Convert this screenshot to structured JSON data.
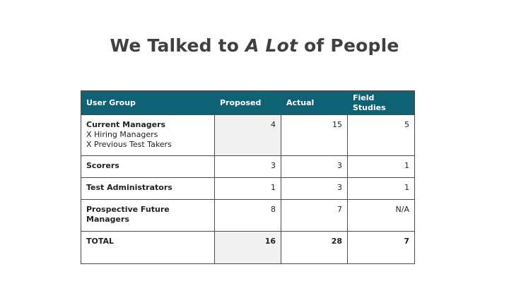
{
  "slide": {
    "title_part1": "We Talked to ",
    "title_emphasis": "A Lot",
    "title_part2": " of People"
  },
  "table": {
    "headers": [
      "User Group",
      "Proposed",
      "Actual",
      "Field Studies"
    ],
    "rows": [
      {
        "group": "Current Managers",
        "sub_items": [
          "X Hiring Managers",
          "X Previous Test Takers"
        ],
        "proposed": "4",
        "actual": "15",
        "field_studies": "5"
      },
      {
        "group": "Scorers",
        "proposed": "3",
        "actual": "3",
        "field_studies": "1"
      },
      {
        "group": "Test Administrators",
        "proposed": "1",
        "actual": "3",
        "field_studies": "1"
      },
      {
        "group": "Prospective Future Managers",
        "proposed": "8",
        "actual": "7",
        "field_studies": "N/A"
      }
    ],
    "total": {
      "label": "TOTAL",
      "proposed": "16",
      "actual": "28",
      "field_studies": "7"
    }
  },
  "colors": {
    "header_bg": "#0f6274",
    "header_text": "#ffffff",
    "proposed_shade": "#f1f1f1",
    "title_text": "#404040"
  }
}
